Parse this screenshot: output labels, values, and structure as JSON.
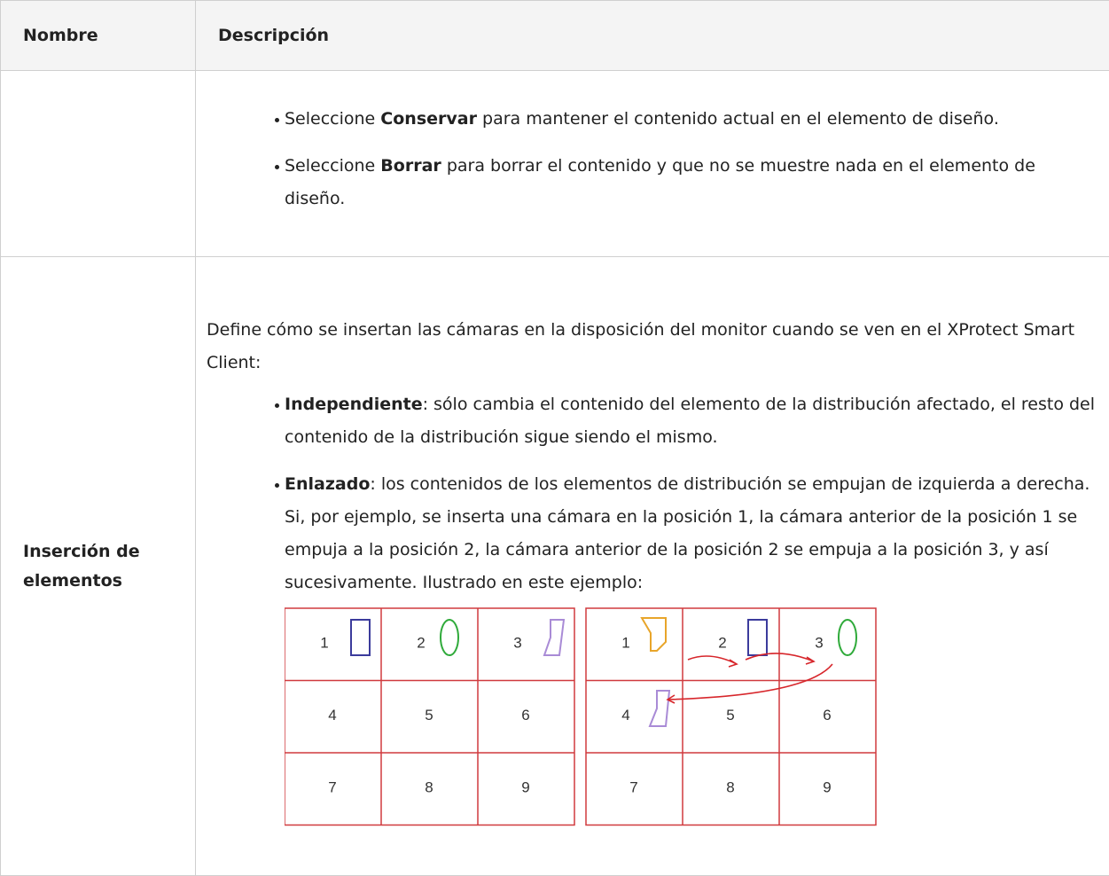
{
  "table": {
    "headers": [
      "Nombre",
      "Descripción"
    ],
    "rows": [
      {
        "bullets": [
          {
            "pre": "Seleccione",
            "term": "Conservar",
            "post": "para mantener el contenido actual en el elemento de diseño."
          },
          {
            "pre": "Seleccione",
            "term": "Borrar",
            "post": "para borrar el contenido y que no se muestre nada en el elemento de diseño."
          }
        ]
      },
      {
        "name": "Inserción de elementos",
        "intro": "Define cómo se insertan las cámaras en la disposición del monitor cuando se ven en el XProtect Smart Client:",
        "bullets": [
          {
            "term": "Independiente",
            "post": ": sólo cambia el contenido del elemento de la distribución afectado, el resto del contenido de la distribución sigue siendo el mismo."
          },
          {
            "term": "Enlazado",
            "post": ": los contenidos de los elementos de distribución se empujan de izquierda a derecha. Si, por ejemplo, se inserta una cámara en la posición 1, la cámara anterior de la posición 1 se empuja a la posición 2, la cámara anterior de la posición 2 se empuja a la posición 3, y así sucesivamente. Ilustrado en este ejemplo:"
          }
        ],
        "figure": {
          "before": [
            1,
            2,
            3,
            4,
            5,
            6,
            7,
            8,
            9
          ],
          "after": [
            1,
            2,
            3,
            4,
            5,
            6,
            7,
            8,
            9
          ]
        }
      }
    ]
  }
}
